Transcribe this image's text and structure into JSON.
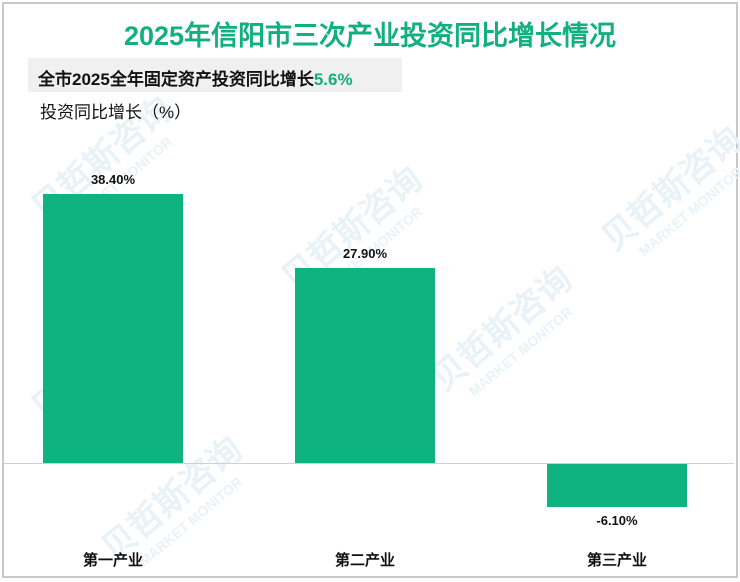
{
  "title": "2025年信阳市三次产业投资同比增长情况",
  "note": {
    "prefix": "全市2025全年固定资产投资同比增长",
    "value": "5.6%"
  },
  "watermark": {
    "cn": "贝哲斯咨询",
    "en": "MARKET MONITOR"
  },
  "colors": {
    "bar": "#0fb380",
    "title": "#12b07e",
    "highlight": "#12b07e"
  },
  "chart_data": {
    "type": "bar",
    "title": "2025年信阳市三次产业投资同比增长情况",
    "subtitle": "全市2025全年固定资产投资同比增长5.6%",
    "ylabel": "投资同比增长（%）",
    "xlabel": "",
    "categories": [
      "第一产业",
      "第二产业",
      "第三产业"
    ],
    "values": [
      38.4,
      27.9,
      -6.1
    ],
    "labels": [
      "38.40%",
      "27.90%",
      "-6.10%"
    ],
    "grid": false,
    "legend": null
  }
}
